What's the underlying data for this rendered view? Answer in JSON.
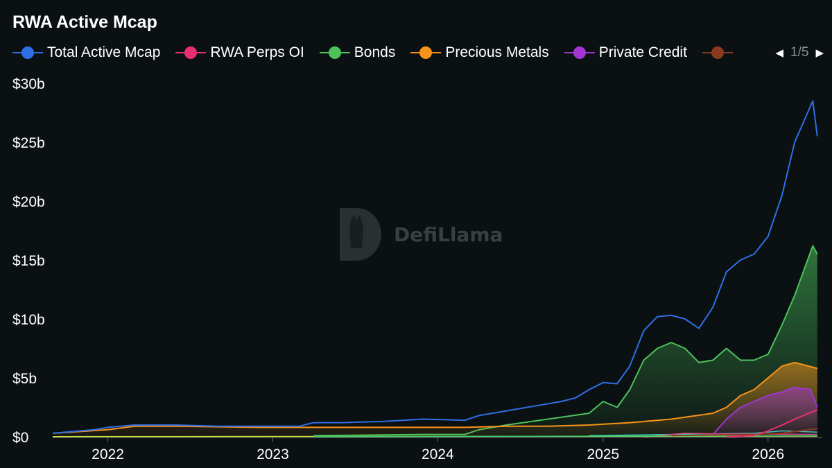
{
  "chart_data": {
    "type": "area",
    "title": "RWA Active Mcap",
    "watermark": "DefiLlama",
    "x_ticks": [
      "2022",
      "2023",
      "2024",
      "2025",
      "2026"
    ],
    "y_ticks": [
      "$0",
      "$5b",
      "$10b",
      "$15b",
      "$20b",
      "$25b",
      "$30b"
    ],
    "ylim": [
      0,
      30
    ],
    "xlim": [
      "2021-09",
      "2026-05"
    ],
    "legend_page": "1/5",
    "legend_placement": "top",
    "series": [
      {
        "name": "Total Active Mcap",
        "color": "#2f6fe4",
        "fill": false,
        "points": [
          [
            "2021-09",
            0.3
          ],
          [
            "2021-12",
            0.6
          ],
          [
            "2022-01",
            0.8
          ],
          [
            "2022-03",
            1.0
          ],
          [
            "2022-06",
            1.0
          ],
          [
            "2022-09",
            0.9
          ],
          [
            "2022-12",
            0.9
          ],
          [
            "2023-03",
            0.9
          ],
          [
            "2023-04",
            1.2
          ],
          [
            "2023-06",
            1.2
          ],
          [
            "2023-09",
            1.3
          ],
          [
            "2023-12",
            1.5
          ],
          [
            "2024-03",
            1.4
          ],
          [
            "2024-04",
            1.8
          ],
          [
            "2024-06",
            2.2
          ],
          [
            "2024-08",
            2.6
          ],
          [
            "2024-10",
            3.0
          ],
          [
            "2024-11",
            3.3
          ],
          [
            "2024-12",
            4.0
          ],
          [
            "2025-01",
            4.6
          ],
          [
            "2025-02",
            4.5
          ],
          [
            "2025-03",
            6.0
          ],
          [
            "2025-04",
            9.0
          ],
          [
            "2025-05",
            10.2
          ],
          [
            "2025-06",
            10.3
          ],
          [
            "2025-07",
            10.0
          ],
          [
            "2025-08",
            9.2
          ],
          [
            "2025-09",
            11.0
          ],
          [
            "2025-10",
            14.0
          ],
          [
            "2025-11",
            15.0
          ],
          [
            "2025-12",
            15.5
          ],
          [
            "2026-01",
            17.0
          ],
          [
            "2026-02",
            20.5
          ],
          [
            "2026-03",
            25.0
          ],
          [
            "2026-04-10",
            28.5
          ],
          [
            "2026-04-20",
            25.5
          ]
        ]
      },
      {
        "name": "RWA Perps OI",
        "color": "#e8306e",
        "fill": false,
        "points": [
          [
            "2025-10",
            0.0
          ],
          [
            "2025-12",
            0.1
          ],
          [
            "2026-01",
            0.5
          ],
          [
            "2026-02",
            1.0
          ],
          [
            "2026-03",
            1.5
          ],
          [
            "2026-04-20",
            2.3
          ]
        ]
      },
      {
        "name": "Bonds",
        "color": "#4cc35b",
        "fill": true,
        "points": [
          [
            "2023-04",
            0.1
          ],
          [
            "2023-12",
            0.2
          ],
          [
            "2024-03",
            0.2
          ],
          [
            "2024-04",
            0.6
          ],
          [
            "2024-06",
            1.0
          ],
          [
            "2024-09",
            1.5
          ],
          [
            "2024-12",
            2.0
          ],
          [
            "2025-01",
            3.0
          ],
          [
            "2025-02",
            2.5
          ],
          [
            "2025-03",
            4.0
          ],
          [
            "2025-04",
            6.5
          ],
          [
            "2025-05",
            7.5
          ],
          [
            "2025-06",
            8.0
          ],
          [
            "2025-07",
            7.5
          ],
          [
            "2025-08",
            6.3
          ],
          [
            "2025-09",
            6.5
          ],
          [
            "2025-10",
            7.5
          ],
          [
            "2025-11",
            6.5
          ],
          [
            "2025-12",
            6.5
          ],
          [
            "2026-01",
            7.0
          ],
          [
            "2026-02",
            9.5
          ],
          [
            "2026-03",
            12.0
          ],
          [
            "2026-04-10",
            16.2
          ],
          [
            "2026-04-20",
            15.5
          ]
        ]
      },
      {
        "name": "Precious Metals",
        "color": "#f7931a",
        "fill": true,
        "points": [
          [
            "2021-09",
            0.3
          ],
          [
            "2022-01",
            0.6
          ],
          [
            "2022-03",
            0.9
          ],
          [
            "2022-06",
            0.9
          ],
          [
            "2022-12",
            0.8
          ],
          [
            "2023-06",
            0.8
          ],
          [
            "2023-12",
            0.8
          ],
          [
            "2024-03",
            0.8
          ],
          [
            "2024-06",
            0.9
          ],
          [
            "2024-09",
            0.9
          ],
          [
            "2024-12",
            1.0
          ],
          [
            "2025-03",
            1.2
          ],
          [
            "2025-06",
            1.5
          ],
          [
            "2025-09",
            2.0
          ],
          [
            "2025-10",
            2.5
          ],
          [
            "2025-11",
            3.5
          ],
          [
            "2025-12",
            4.0
          ],
          [
            "2026-01",
            5.0
          ],
          [
            "2026-02",
            6.0
          ],
          [
            "2026-03",
            6.3
          ],
          [
            "2026-04-20",
            5.8
          ]
        ]
      },
      {
        "name": "Private Credit",
        "color": "#a235d4",
        "fill": true,
        "points": [
          [
            "2025-09",
            0.2
          ],
          [
            "2025-10",
            1.5
          ],
          [
            "2025-11",
            2.5
          ],
          [
            "2025-12",
            3.0
          ],
          [
            "2026-01",
            3.5
          ],
          [
            "2026-02",
            3.8
          ],
          [
            "2026-03",
            4.2
          ],
          [
            "2026-04-05",
            4.0
          ],
          [
            "2026-04-20",
            2.5
          ]
        ]
      },
      {
        "name": "",
        "color": "#8b3a1f",
        "fill": false,
        "points": [
          [
            "2025-06",
            0.1
          ],
          [
            "2025-12",
            0.2
          ],
          [
            "2026-02",
            0.3
          ],
          [
            "2026-04-20",
            0.7
          ]
        ]
      }
    ],
    "minor_series": [
      {
        "color": "#2ed3c8",
        "points": [
          [
            "2024-12",
            0.1
          ],
          [
            "2025-06",
            0.2
          ],
          [
            "2025-12",
            0.3
          ],
          [
            "2026-02",
            0.5
          ],
          [
            "2026-04-20",
            0.4
          ]
        ]
      },
      {
        "color": "#e0408f",
        "points": [
          [
            "2025-04",
            0.0
          ],
          [
            "2025-06",
            0.2
          ],
          [
            "2025-07",
            0.3
          ],
          [
            "2025-09",
            0.25
          ],
          [
            "2026-04-20",
            0.2
          ]
        ]
      },
      {
        "color": "#c8e63a",
        "points": [
          [
            "2021-09",
            0.02
          ],
          [
            "2026-04-20",
            0.05
          ]
        ]
      },
      {
        "color": "#3ad16f",
        "points": [
          [
            "2023-04",
            0.02
          ],
          [
            "2026-04-20",
            0.08
          ]
        ]
      }
    ]
  }
}
